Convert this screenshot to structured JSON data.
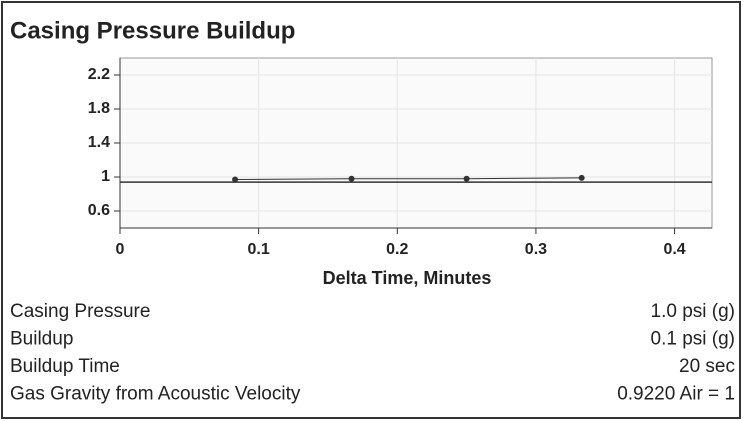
{
  "chart_data": {
    "type": "line",
    "title": "Casing Pressure Buildup",
    "xlabel": "Delta Time, Minutes",
    "x": [
      0.083,
      0.167,
      0.25,
      0.333
    ],
    "values": [
      0.97,
      0.98,
      0.98,
      0.99
    ],
    "color": "#333333",
    "reference_line": 0.94,
    "xlim": [
      0,
      0.427
    ],
    "xticks": [
      0,
      0.1,
      0.2,
      0.3,
      0.4
    ],
    "ylim": [
      0.4,
      2.4
    ],
    "yticks": [
      0.6,
      1,
      1.4,
      1.8,
      2.2
    ],
    "grid": true
  },
  "table": {
    "rows": [
      [
        "Casing Pressure",
        "1.0 psi (g)"
      ],
      [
        "Buildup",
        "0.1 psi (g)"
      ],
      [
        "Buildup Time",
        "20 sec"
      ],
      [
        "Gas Gravity from Acoustic Velocity",
        "0.9220 Air = 1"
      ]
    ]
  }
}
